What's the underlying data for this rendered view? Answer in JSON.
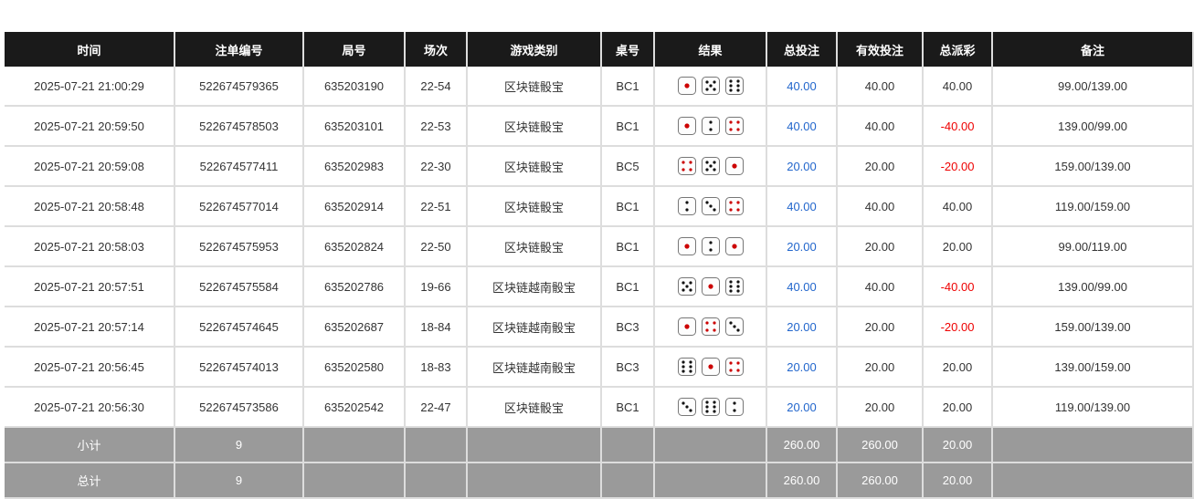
{
  "headers": [
    "时间",
    "注单编号",
    "局号",
    "场次",
    "游戏类别",
    "桌号",
    "结果",
    "总投注",
    "有效投注",
    "总派彩",
    "备注"
  ],
  "rows": [
    {
      "time": "2025-07-21 21:00:29",
      "bet_no": "522674579365",
      "round": "635203190",
      "session": "22-54",
      "game": "区块链骰宝",
      "table": "BC1",
      "dice": [
        1,
        5,
        6
      ],
      "total_bet": "40.00",
      "valid_bet": "40.00",
      "payout": "40.00",
      "payout_negative": false,
      "note": "99.00/139.00"
    },
    {
      "time": "2025-07-21 20:59:50",
      "bet_no": "522674578503",
      "round": "635203101",
      "session": "22-53",
      "game": "区块链骰宝",
      "table": "BC1",
      "dice": [
        1,
        2,
        4
      ],
      "total_bet": "40.00",
      "valid_bet": "40.00",
      "payout": "-40.00",
      "payout_negative": true,
      "note": "139.00/99.00"
    },
    {
      "time": "2025-07-21 20:59:08",
      "bet_no": "522674577411",
      "round": "635202983",
      "session": "22-30",
      "game": "区块链骰宝",
      "table": "BC5",
      "dice": [
        4,
        5,
        1
      ],
      "total_bet": "20.00",
      "valid_bet": "20.00",
      "payout": "-20.00",
      "payout_negative": true,
      "note": "159.00/139.00"
    },
    {
      "time": "2025-07-21 20:58:48",
      "bet_no": "522674577014",
      "round": "635202914",
      "session": "22-51",
      "game": "区块链骰宝",
      "table": "BC1",
      "dice": [
        2,
        3,
        4
      ],
      "total_bet": "40.00",
      "valid_bet": "40.00",
      "payout": "40.00",
      "payout_negative": false,
      "note": "119.00/159.00"
    },
    {
      "time": "2025-07-21 20:58:03",
      "bet_no": "522674575953",
      "round": "635202824",
      "session": "22-50",
      "game": "区块链骰宝",
      "table": "BC1",
      "dice": [
        1,
        2,
        1
      ],
      "total_bet": "20.00",
      "valid_bet": "20.00",
      "payout": "20.00",
      "payout_negative": false,
      "note": "99.00/119.00"
    },
    {
      "time": "2025-07-21 20:57:51",
      "bet_no": "522674575584",
      "round": "635202786",
      "session": "19-66",
      "game": "区块链越南骰宝",
      "table": "BC1",
      "dice": [
        5,
        1,
        6
      ],
      "total_bet": "40.00",
      "valid_bet": "40.00",
      "payout": "-40.00",
      "payout_negative": true,
      "note": "139.00/99.00"
    },
    {
      "time": "2025-07-21 20:57:14",
      "bet_no": "522674574645",
      "round": "635202687",
      "session": "18-84",
      "game": "区块链越南骰宝",
      "table": "BC3",
      "dice": [
        1,
        4,
        3
      ],
      "total_bet": "20.00",
      "valid_bet": "20.00",
      "payout": "-20.00",
      "payout_negative": true,
      "note": "159.00/139.00"
    },
    {
      "time": "2025-07-21 20:56:45",
      "bet_no": "522674574013",
      "round": "635202580",
      "session": "18-83",
      "game": "区块链越南骰宝",
      "table": "BC3",
      "dice": [
        6,
        1,
        4
      ],
      "total_bet": "20.00",
      "valid_bet": "20.00",
      "payout": "20.00",
      "payout_negative": false,
      "note": "139.00/159.00"
    },
    {
      "time": "2025-07-21 20:56:30",
      "bet_no": "522674573586",
      "round": "635202542",
      "session": "22-47",
      "game": "区块链骰宝",
      "table": "BC1",
      "dice": [
        3,
        6,
        2
      ],
      "total_bet": "20.00",
      "valid_bet": "20.00",
      "payout": "20.00",
      "payout_negative": false,
      "note": "119.00/139.00"
    }
  ],
  "subtotal": {
    "label": "小计",
    "count": "9",
    "total_bet": "260.00",
    "valid_bet": "260.00",
    "payout": "20.00"
  },
  "total": {
    "label": "总计",
    "count": "9",
    "total_bet": "260.00",
    "valid_bet": "260.00",
    "payout": "20.00"
  },
  "colors": {
    "header_bg": "#1a1a1a",
    "summary_bg": "#9a9a9a",
    "bet_blue": "#2266cc",
    "loss_red": "#e00000"
  }
}
